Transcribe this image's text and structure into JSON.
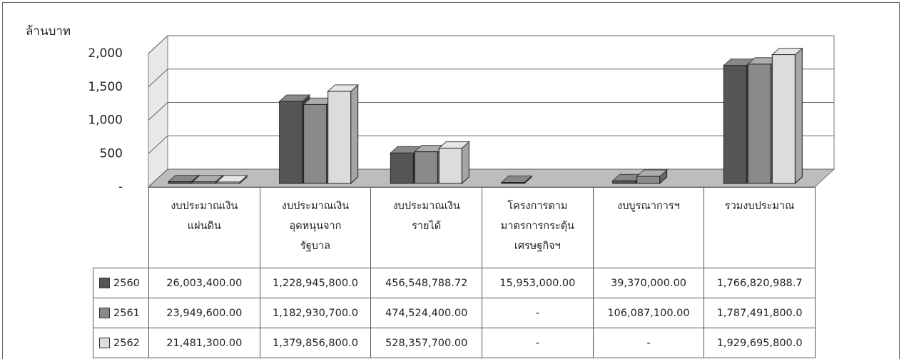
{
  "chart_data": {
    "type": "bar3d",
    "y_label": "ล้านบาท",
    "categories": [
      "งบประมาณเงิน\nแผ่นดิน",
      "งบประมาณเงิน\nอุดหนุนจาก\nรัฐบาล",
      "งบประมาณเงิน\nรายได้",
      "โครงการตาม\nมาตรการกระตุ้น\nเศรษฐกิจฯ",
      "งบบูรณาการฯ",
      "รวมงบประมาณ"
    ],
    "series": [
      {
        "name": "2560",
        "color": "#555555",
        "values": [
          26.0034,
          1228.9458,
          456.54878872,
          15.953,
          39.37,
          1766.8209887
        ],
        "value_labels": [
          "26,003,400.00",
          "1,228,945,800.0",
          "456,548,788.72",
          "15,953,000.00",
          "39,370,000.00",
          "1,766,820,988.7"
        ]
      },
      {
        "name": "2561",
        "color": "#8a8a8a",
        "values": [
          23.9496,
          1182.9307,
          474.5244,
          null,
          106.0871,
          1787.4918
        ],
        "value_labels": [
          "23,949,600.00",
          "1,182,930,700.0",
          "474,524,400.00",
          "-",
          "106,087,100.00",
          "1,787,491,800.0"
        ]
      },
      {
        "name": "2562",
        "color": "#dcdcdc",
        "values": [
          21.4813,
          1379.8568,
          528.3577,
          null,
          null,
          1929.6958
        ],
        "value_labels": [
          "21,481,300.00",
          "1,379,856,800.0",
          "528,357,700.00",
          "-",
          "-",
          "1,929,695,800.0"
        ]
      }
    ],
    "ylim": [
      0,
      2000
    ],
    "yticks": [
      {
        "value": 0,
        "label": "-"
      },
      500,
      {
        "value": 1000,
        "label": "1,000"
      },
      {
        "value": 1500,
        "label": "1,500"
      },
      {
        "value": 2000,
        "label": "2,000"
      }
    ],
    "grid": true
  }
}
